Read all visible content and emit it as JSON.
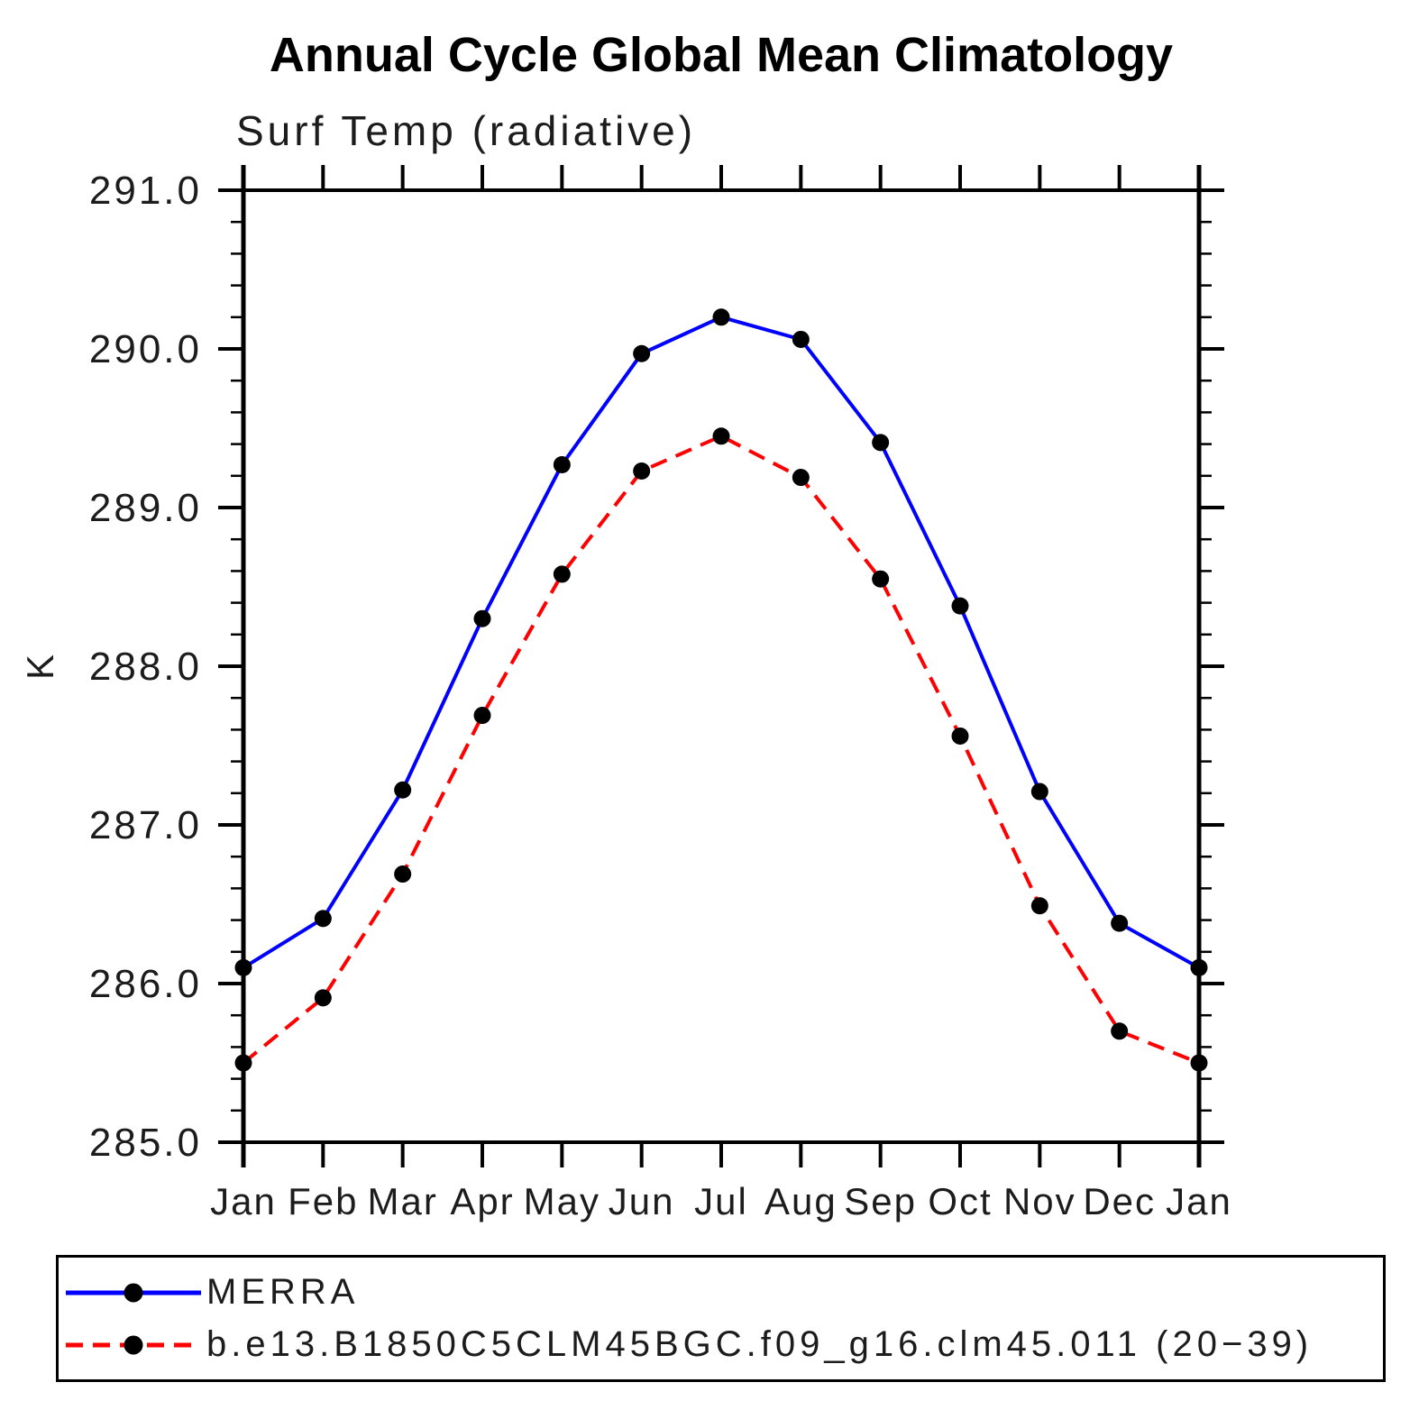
{
  "page": {
    "title": "Annual Cycle Global Mean Climatology",
    "subtitle": "Surf Temp (radiative)"
  },
  "chart_data": {
    "type": "line",
    "title": "Annual Cycle Global Mean Climatology",
    "subtitle": "Surf Temp (radiative)",
    "xlabel": "",
    "ylabel": "K",
    "x_labels": [
      "Jan",
      "Feb",
      "Mar",
      "Apr",
      "May",
      "Jun",
      "Jul",
      "Aug",
      "Sep",
      "Oct",
      "Nov",
      "Dec",
      "Jan"
    ],
    "ylim": [
      285.0,
      291.0
    ],
    "y_major_step": 1.0,
    "y_minor_step": 0.2,
    "y_tick_labels": [
      "285.0",
      "286.0",
      "287.0",
      "288.0",
      "289.0",
      "290.0",
      "291.0"
    ],
    "grid": false,
    "legend_position": "bottom",
    "marker": "filled-circle",
    "series": [
      {
        "name": "MERRA",
        "color": "#0000ff",
        "style": "solid",
        "marker_color": "#000000",
        "values": [
          286.1,
          286.41,
          287.22,
          288.3,
          289.27,
          289.97,
          290.2,
          290.06,
          289.41,
          288.38,
          287.21,
          286.38,
          286.1
        ]
      },
      {
        "name": "b.e13.B1850C5CLM45BGC.f09_g16.clm45.011 (20−39)",
        "color": "#ff0000",
        "style": "dashed",
        "marker_color": "#000000",
        "values": [
          285.5,
          285.91,
          286.69,
          287.69,
          288.58,
          289.23,
          289.45,
          289.19,
          288.55,
          287.56,
          286.49,
          285.7,
          285.5
        ]
      }
    ]
  }
}
